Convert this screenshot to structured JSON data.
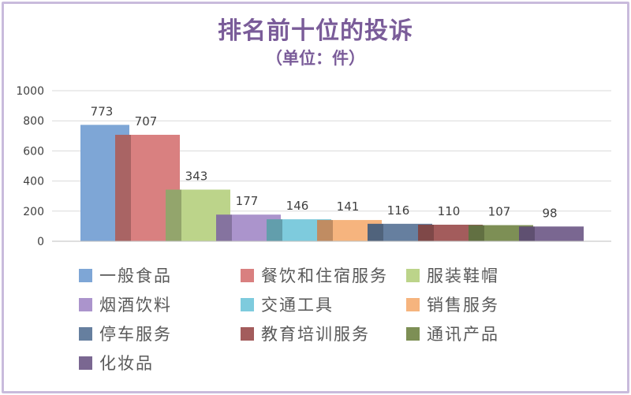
{
  "chart_data": {
    "type": "bar",
    "title": "排名前十位的投诉",
    "subtitle": "（单位：件）",
    "ylim": [
      0,
      1000
    ],
    "yticks": [
      0,
      200,
      400,
      600,
      800,
      1000
    ],
    "legend_position": "bottom",
    "grid": true,
    "series": [
      {
        "name": "一般食品",
        "value": 773,
        "color": "#7ea6d6"
      },
      {
        "name": "餐饮和住宿服务",
        "value": 707,
        "color": "#d98080"
      },
      {
        "name": "服装鞋帽",
        "value": 343,
        "color": "#bcd48a"
      },
      {
        "name": "烟酒饮料",
        "value": 177,
        "color": "#ab94cc"
      },
      {
        "name": "交通工具",
        "value": 146,
        "color": "#7ecbdd"
      },
      {
        "name": "销售服务",
        "value": 141,
        "color": "#f6b47e"
      },
      {
        "name": "停车服务",
        "value": 116,
        "color": "#667f9f"
      },
      {
        "name": "教育培训服务",
        "value": 110,
        "color": "#a35c5c"
      },
      {
        "name": "通讯产品",
        "value": 107,
        "color": "#7d8f55"
      },
      {
        "name": "化妆品",
        "value": 98,
        "color": "#7a6791"
      }
    ]
  }
}
